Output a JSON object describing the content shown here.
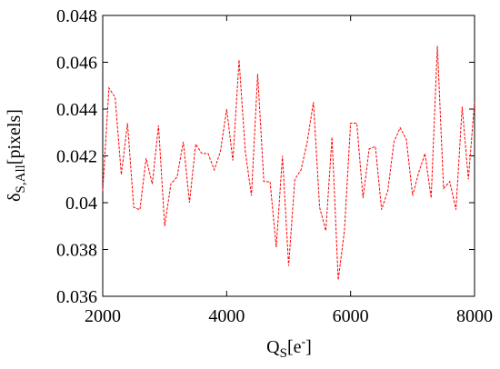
{
  "chart_data": {
    "type": "line",
    "xlabel": {
      "main": "Q",
      "sub": "S",
      "rest": "[e",
      "sup": "-",
      "end": "]"
    },
    "ylabel": {
      "main": "δ",
      "sub": "S,All",
      "rest": "[pixels]"
    },
    "x": [
      2000,
      2100,
      2200,
      2300,
      2400,
      2500,
      2600,
      2700,
      2800,
      2900,
      3000,
      3100,
      3200,
      3300,
      3400,
      3500,
      3600,
      3700,
      3800,
      3900,
      4000,
      4100,
      4200,
      4300,
      4400,
      4500,
      4600,
      4700,
      4800,
      4900,
      5000,
      5100,
      5200,
      5300,
      5400,
      5500,
      5600,
      5700,
      5800,
      5900,
      6000,
      6100,
      6200,
      6300,
      6400,
      6500,
      6600,
      6700,
      6800,
      6900,
      7000,
      7100,
      7200,
      7300,
      7400,
      7500,
      7600,
      7700,
      7800,
      7900,
      8000
    ],
    "series": [
      {
        "color": "#ff0000",
        "dashed": true,
        "values": [
          0.0405,
          0.0449,
          0.0445,
          0.0412,
          0.0434,
          0.0398,
          0.0397,
          0.0419,
          0.0408,
          0.0433,
          0.039,
          0.0408,
          0.0411,
          0.0426,
          0.04,
          0.0425,
          0.0421,
          0.0421,
          0.0414,
          0.0422,
          0.044,
          0.0418,
          0.0461,
          0.0422,
          0.0403,
          0.0455,
          0.0409,
          0.0409,
          0.0381,
          0.042,
          0.0373,
          0.041,
          0.0414,
          0.0426,
          0.0443,
          0.0398,
          0.0388,
          0.0428,
          0.0367,
          0.0388,
          0.0434,
          0.0434,
          0.0402,
          0.0423,
          0.0424,
          0.0397,
          0.0405,
          0.0426,
          0.0432,
          0.0427,
          0.0403,
          0.0413,
          0.0421,
          0.0402,
          0.0467,
          0.0406,
          0.0409,
          0.0397,
          0.0441,
          0.041,
          0.0443
        ]
      }
    ],
    "xlim": [
      2000,
      8000
    ],
    "xticks": [
      2000,
      4000,
      6000,
      8000
    ],
    "ylim": [
      0.036,
      0.048
    ],
    "yticks": [
      0.036,
      0.038,
      0.04,
      0.042,
      0.044,
      0.046,
      0.048
    ],
    "grid": false
  }
}
